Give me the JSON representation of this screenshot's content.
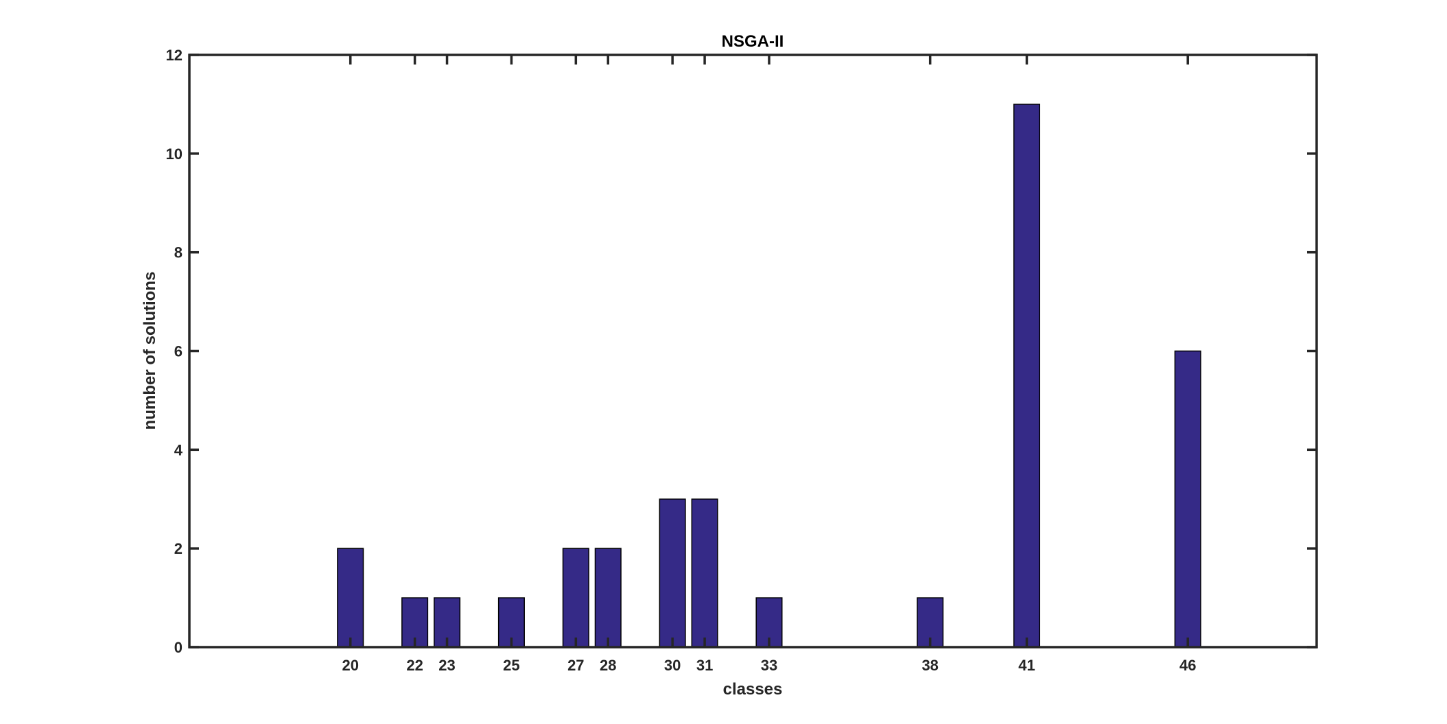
{
  "chart_data": {
    "type": "bar",
    "title": "NSGA-II",
    "xlabel": "classes",
    "ylabel": "number of solutions",
    "categories": [
      "20",
      "22",
      "23",
      "25",
      "27",
      "28",
      "30",
      "31",
      "33",
      "38",
      "41",
      "46"
    ],
    "x": [
      20,
      22,
      23,
      25,
      27,
      28,
      30,
      31,
      33,
      38,
      41,
      46
    ],
    "values": [
      2,
      1,
      1,
      1,
      2,
      2,
      3,
      3,
      1,
      1,
      11,
      6
    ],
    "xlim": [
      15,
      50
    ],
    "ylim": [
      0,
      12
    ],
    "yticks": [
      0,
      2,
      4,
      6,
      8,
      10,
      12
    ],
    "bar_color": "#352a87",
    "axis_color": "#262626",
    "grid": false,
    "box": true
  }
}
